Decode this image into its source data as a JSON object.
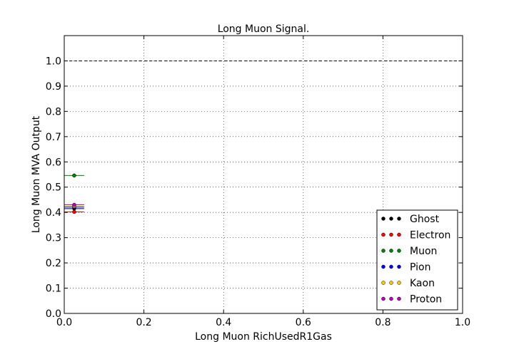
{
  "chart_data": {
    "type": "scatter",
    "title": "Long Muon Signal.",
    "xlabel": "Long Muon RichUsedR1Gas",
    "ylabel": "Long Muon MVA Output",
    "xlim": [
      0.0,
      1.0
    ],
    "ylim": [
      0.0,
      1.1
    ],
    "xticks": [
      "0.0",
      "0.2",
      "0.4",
      "0.6",
      "0.8",
      "1.0"
    ],
    "yticks": [
      "0.0",
      "0.1",
      "0.2",
      "0.3",
      "0.4",
      "0.5",
      "0.6",
      "0.7",
      "0.8",
      "0.9",
      "1.0"
    ],
    "grid": true,
    "legend_position": "lower-right",
    "reference_line": {
      "y": 1.0,
      "style": "dashed"
    },
    "series": [
      {
        "name": "Ghost",
        "color": "#000000",
        "x": 0.025,
        "y": 0.415,
        "xerr": 0.025,
        "yerr": 0.004
      },
      {
        "name": "Electron",
        "color": "#ff0000",
        "x": 0.025,
        "y": 0.402,
        "xerr": 0.025,
        "yerr": 0.004
      },
      {
        "name": "Muon",
        "color": "#008000",
        "x": 0.025,
        "y": 0.546,
        "xerr": 0.025,
        "yerr": 0.003
      },
      {
        "name": "Pion",
        "color": "#0000ff",
        "x": 0.025,
        "y": 0.421,
        "xerr": 0.025,
        "yerr": 0.004
      },
      {
        "name": "Kaon",
        "color": "#ffcc00",
        "x": 0.025,
        "y": 0.425,
        "xerr": 0.025,
        "yerr": 0.004
      },
      {
        "name": "Proton",
        "color": "#bf00bf",
        "x": 0.025,
        "y": 0.43,
        "xerr": 0.025,
        "yerr": 0.004
      }
    ]
  }
}
